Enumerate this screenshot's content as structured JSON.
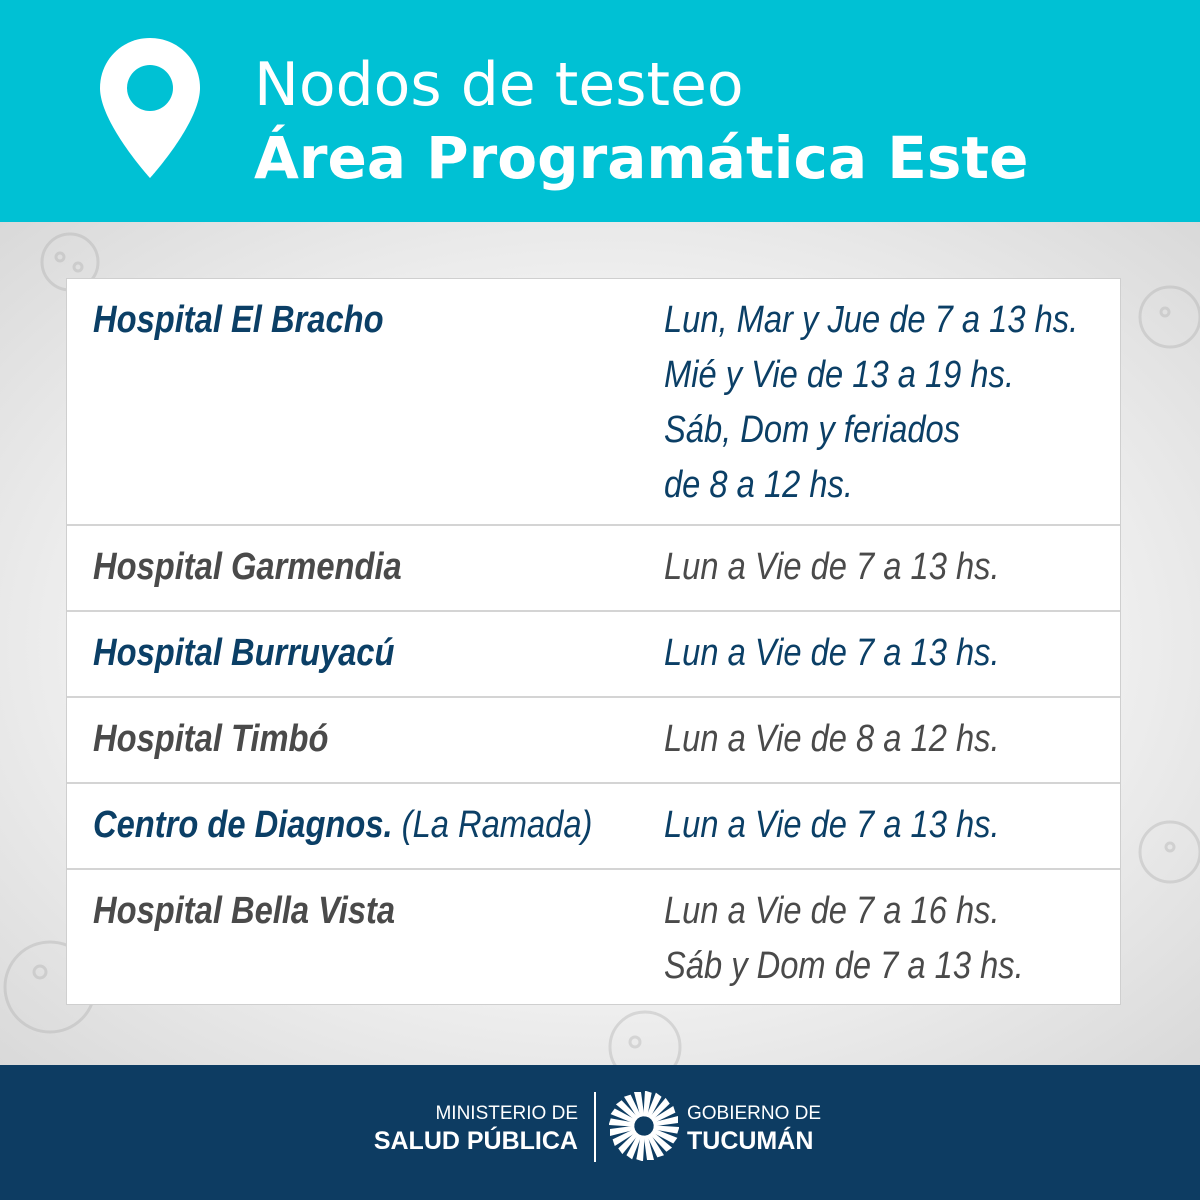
{
  "header": {
    "title": "Nodos de testeo",
    "subtitle_main": "Área Programática ",
    "subtitle_bold": "Este",
    "icon": "map-pin-icon"
  },
  "colors": {
    "header": "#00c1d4",
    "footer": "#0d3c62",
    "blue_text": "#0b3f66",
    "gray_text": "#4a4a4a"
  },
  "rows": [
    {
      "name": "Hospital El Bracho",
      "name_sub": "",
      "schedule": [
        "Lun, Mar y Jue de 7 a 13 hs.",
        "Mié y Vie de 13 a 19 hs.",
        "Sáb, Dom y feriados",
        "de 8 a 12 hs."
      ]
    },
    {
      "name": "Hospital Garmendia",
      "name_sub": "",
      "schedule": [
        "Lun a Vie de 7 a 13 hs."
      ]
    },
    {
      "name": "Hospital Burruyacú",
      "name_sub": "",
      "schedule": [
        "Lun a Vie de 7 a 13 hs."
      ]
    },
    {
      "name": "Hospital Timbó",
      "name_sub": "",
      "schedule": [
        "Lun a Vie de 8 a 12 hs."
      ]
    },
    {
      "name": "Centro de Diagnos.",
      "name_sub": " (La Ramada)",
      "schedule": [
        "Lun a Vie de 7 a 13 hs."
      ]
    },
    {
      "name": "Hospital Bella Vista",
      "name_sub": "",
      "schedule": [
        "Lun a Vie de 7 a 16 hs.",
        "Sáb y Dom de 7 a 13 hs."
      ]
    }
  ],
  "footer": {
    "ministry_line1": "MINISTERIO DE",
    "ministry_line2": "SALUD PÚBLICA",
    "gov_line1": "GOBIERNO DE",
    "gov_line2": "TUCUMÁN"
  }
}
